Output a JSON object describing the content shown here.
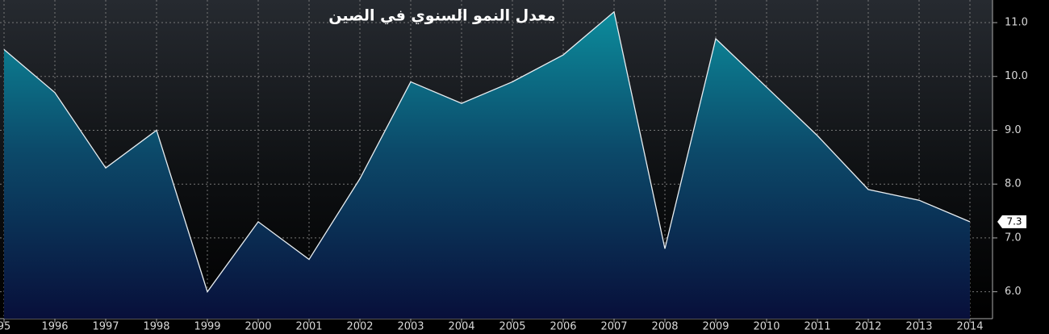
{
  "chart_data": {
    "type": "area",
    "title": "معدل النمو السنوي في الصين",
    "categories": [
      "95",
      "1996",
      "1997",
      "1998",
      "1999",
      "2000",
      "2001",
      "2002",
      "2003",
      "2004",
      "2005",
      "2006",
      "2007",
      "2008",
      "2009",
      "2010",
      "2011",
      "2012",
      "2013",
      "2014"
    ],
    "series": [
      {
        "color": "#e8eef2",
        "values": [
          10.5,
          9.7,
          8.3,
          9.0,
          6.0,
          7.3,
          6.6,
          8.1,
          9.9,
          9.5,
          9.9,
          10.4,
          11.2,
          6.8,
          10.7,
          9.8,
          8.9,
          7.9,
          7.7,
          7.3
        ],
        "value_labels": [
          null,
          null,
          null,
          null,
          null,
          null,
          null,
          null,
          null,
          null,
          null,
          null,
          null,
          null,
          null,
          null,
          null,
          null,
          null,
          "7.3"
        ]
      }
    ],
    "ylim": [
      5.5,
      11.42
    ],
    "yticks": [
      {
        "value": 6,
        "label": "6.0"
      },
      {
        "value": 7,
        "label": "7.0"
      },
      {
        "value": 8,
        "label": "8.0"
      },
      {
        "value": 9,
        "label": "9.0"
      },
      {
        "value": 10,
        "label": "10.0"
      },
      {
        "value": 11,
        "label": "11.0"
      }
    ],
    "grid": true
  }
}
